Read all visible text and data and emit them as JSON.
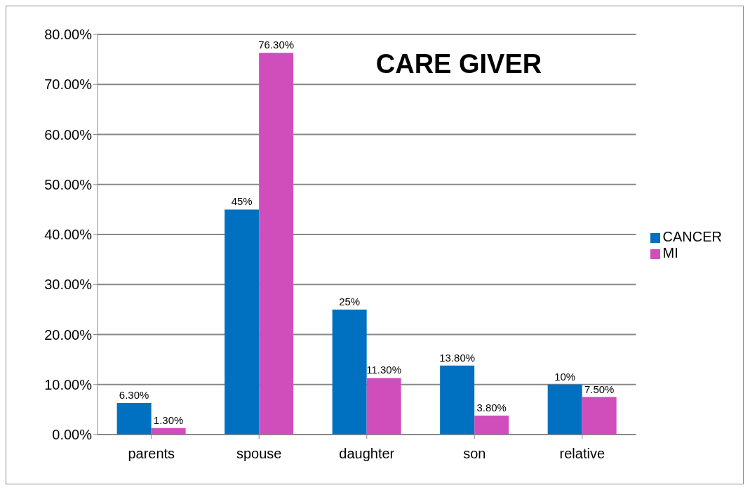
{
  "chart_data": {
    "type": "bar",
    "title": "CARE GIVER",
    "categories": [
      "parents",
      "spouse",
      "daughter",
      "son",
      "relative"
    ],
    "series": [
      {
        "name": "CANCER",
        "color": "#0070c0",
        "values": [
          6.3,
          45,
          25,
          13.8,
          10
        ],
        "value_labels": [
          "6.30%",
          "45%",
          "25%",
          "13.80%",
          "10%"
        ]
      },
      {
        "name": "MI",
        "color": "#d04ebc",
        "values": [
          1.3,
          76.3,
          11.3,
          3.8,
          7.5
        ],
        "value_labels": [
          "1.30%",
          "76.30%",
          "11.30%",
          "3.80%",
          "7.50%"
        ]
      }
    ],
    "ylim": [
      0,
      80
    ],
    "yticks": [
      {
        "value": 0,
        "label": "0.00%"
      },
      {
        "value": 10,
        "label": "10.00%"
      },
      {
        "value": 20,
        "label": "20.00%"
      },
      {
        "value": 30,
        "label": "30.00%"
      },
      {
        "value": 40,
        "label": "40.00%"
      },
      {
        "value": 50,
        "label": "50.00%"
      },
      {
        "value": 60,
        "label": "60.00%"
      },
      {
        "value": 70,
        "label": "70.00%"
      },
      {
        "value": 80,
        "label": "80.00%"
      }
    ],
    "grid": "y",
    "legend": "right"
  }
}
